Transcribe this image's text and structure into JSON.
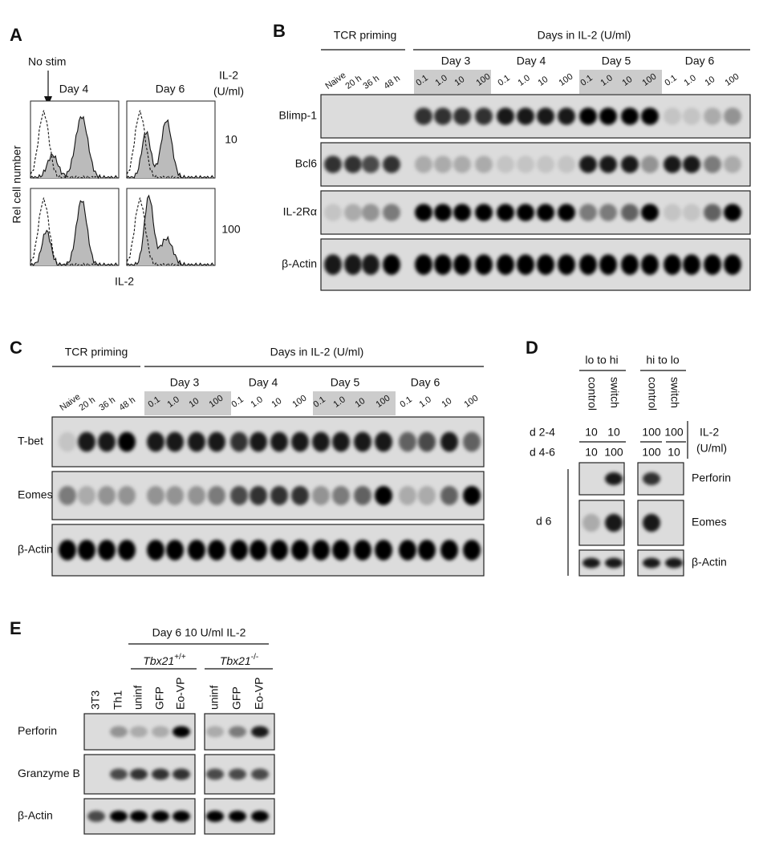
{
  "panels": {
    "A": {
      "label": "A",
      "annotation": "No stim",
      "columns": [
        "Day 4",
        "Day 6"
      ],
      "legend_title": [
        "IL-2",
        "(U/ml)"
      ],
      "rows": [
        "10",
        "100"
      ],
      "y_label": "Rel cell number",
      "x_label": "IL-2"
    },
    "B": {
      "label": "B",
      "group_titles": [
        "TCR priming",
        "Days in IL-2 (U/ml)"
      ],
      "priming_lanes": [
        "Naive",
        "20 h",
        "36 h",
        "48 h"
      ],
      "days": [
        "Day 3",
        "Day 4",
        "Day 5",
        "Day 6"
      ],
      "doses": [
        "0.1",
        "1.0",
        "10",
        "100"
      ],
      "blots": [
        "Blimp-1",
        "Bcl6",
        "IL-2Rα",
        "β-Actin"
      ]
    },
    "C": {
      "label": "C",
      "group_titles": [
        "TCR priming",
        "Days in IL-2 (U/ml)"
      ],
      "priming_lanes": [
        "Naive",
        "20 h",
        "36 h",
        "48 h"
      ],
      "days": [
        "Day 3",
        "Day 4",
        "Day 5",
        "Day 6"
      ],
      "doses": [
        "0.1",
        "1.0",
        "10",
        "100"
      ],
      "blots": [
        "T-bet",
        "Eomes",
        "β-Actin"
      ]
    },
    "D": {
      "label": "D",
      "groups": [
        "lo to hi",
        "hi to lo"
      ],
      "lanes": [
        "control",
        "switch",
        "control",
        "switch"
      ],
      "row_labels": [
        "d 2-4",
        "d 4-6"
      ],
      "doses_d24": [
        "10",
        "10",
        "100",
        "100"
      ],
      "doses_d46": [
        "10",
        "100",
        "100",
        "10"
      ],
      "il2_label": [
        "IL-2",
        "(U/ml)"
      ],
      "time_label": "d 6",
      "blots": [
        "Perforin",
        "Eomes",
        "β-Actin"
      ]
    },
    "E": {
      "label": "E",
      "title": "Day 6 10 U/ml IL-2",
      "genotypes": [
        {
          "gene": "Tbx21",
          "sup": "+/+"
        },
        {
          "gene": "Tbx21",
          "sup": "-/-"
        }
      ],
      "lanes": [
        "3T3",
        "Th1",
        "uninf",
        "GFP",
        "Eo-VP",
        "uninf",
        "GFP",
        "Eo-VP"
      ],
      "blots": [
        "Perforin",
        "Granzyme B",
        "β-Actin"
      ]
    }
  }
}
